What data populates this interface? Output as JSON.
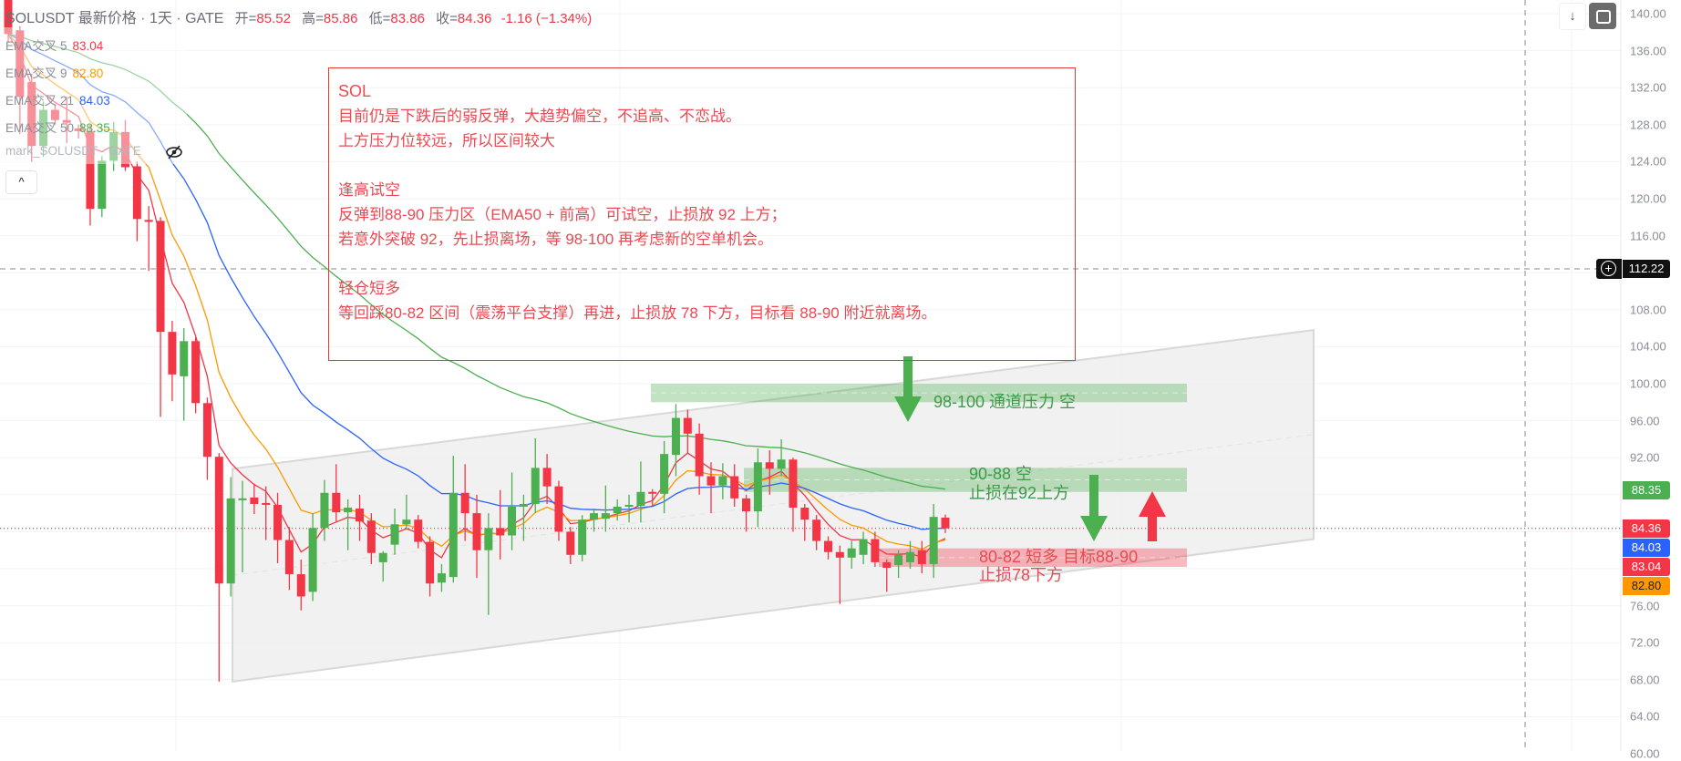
{
  "header": {
    "symbol": "SOLUSDT",
    "title_rest": "最新价格 · 1天 · GATE",
    "open_label": "开=",
    "open": "85.52",
    "high_label": "高=",
    "high": "85.86",
    "low_label": "低=",
    "low": "83.86",
    "close_label": "收=",
    "close": "84.36",
    "change": "-1.16 (−1.34%)"
  },
  "legend": {
    "items": [
      {
        "label": "EMA交叉 5",
        "value": "83.04",
        "color": "#f23645"
      },
      {
        "label": "EMA交叉 9",
        "value": "82.80",
        "color": "#ff9800"
      },
      {
        "label": "EMA交叉 21",
        "value": "84.03",
        "color": "#2962ff"
      },
      {
        "label": "EMA交叉 50",
        "value": "88.35",
        "color": "#4caf50"
      }
    ],
    "mark_label": "mark_SOLUSDT · GATE",
    "collapse_icon": "chevron-up-icon",
    "collapse_glyph": "^"
  },
  "toolbar": {
    "scroll_glyph": "↓",
    "scroll_icon": "arrow-down-icon",
    "fullscreen_icon": "fullscreen-icon"
  },
  "note": {
    "lines": [
      "SOL",
      "目前仍是下跌后的弱反弹，大趋势偏空，不追高、不恋战。",
      "上方压力位较远，所以区间较大",
      "",
      "逢高试空",
      "反弹到88-90 压力区（EMA50 + 前高）可试空，止损放 92 上方；",
      "若意外突破 92，先止损离场，等 98-100 再考虑新的空单机会。",
      "",
      "轻仓短多",
      "等回踩80-82 区间（震荡平台支撑）再进，止损放 78 下方，目标看 88-90 附近就离场。"
    ]
  },
  "zones": [
    {
      "label": "98-100 通道压力 空",
      "price_range": [
        98,
        100
      ],
      "color": "#4caf50"
    },
    {
      "label": "90-88 空",
      "label2": "止损在92上方",
      "price_range": [
        88,
        90
      ],
      "color": "#4caf50"
    },
    {
      "label": "80-82 短多 目标88-90",
      "label2": "止损78下方",
      "price_range": [
        80,
        82
      ],
      "color": "#f23645"
    }
  ],
  "crosshair": {
    "price": "112.22",
    "plus_glyph": "+"
  },
  "price_labels": [
    {
      "value": "88.35",
      "color": "#4caf50"
    },
    {
      "value": "84.36",
      "color": "#f23645"
    },
    {
      "value": "84.03",
      "color": "#2962ff"
    },
    {
      "value": "83.04",
      "color": "#f23645"
    },
    {
      "value": "82.80",
      "color": "#ff9800"
    }
  ],
  "chart_data": {
    "type": "candlestick",
    "timeframe": "1天",
    "ylim": [
      60,
      140
    ],
    "y_ticks": [
      "140.00",
      "136.00",
      "132.00",
      "128.00",
      "124.00",
      "120.00",
      "116.00",
      "112.00",
      "108.00",
      "104.00",
      "100.00",
      "96.00",
      "92.00",
      "88.00",
      "84.00",
      "80.00",
      "76.00",
      "72.00",
      "68.00",
      "64.00",
      "60.00"
    ],
    "grid": true,
    "colors": {
      "up": "#4caf50",
      "down": "#f23645",
      "last_price_line": "#f23645"
    },
    "ohlc_order": [
      "open",
      "high",
      "low",
      "close"
    ],
    "ohlc": [
      [
        141.5,
        141.8,
        137.0,
        137.8
      ],
      [
        138.2,
        138.6,
        127.0,
        131.0
      ],
      [
        132.6,
        133.5,
        124.0,
        125.7
      ],
      [
        125.7,
        130.5,
        124.5,
        129.6
      ],
      [
        129.6,
        130.2,
        128.0,
        128.5
      ],
      [
        128.5,
        131.0,
        126.0,
        128.2
      ],
      [
        127.6,
        128.0,
        126.5,
        127.3
      ],
      [
        127.3,
        128.0,
        117.1,
        118.9
      ],
      [
        118.9,
        124.6,
        118.0,
        124.1
      ],
      [
        124.1,
        128.3,
        123.0,
        127.2
      ],
      [
        127.2,
        128.5,
        123.0,
        123.4
      ],
      [
        123.5,
        124.0,
        115.4,
        117.8
      ],
      [
        117.7,
        119.2,
        112.2,
        117.5
      ],
      [
        117.6,
        118.0,
        96.4,
        105.6
      ],
      [
        105.6,
        106.8,
        98.1,
        101.0
      ],
      [
        100.8,
        106.0,
        96.0,
        104.6
      ],
      [
        104.6,
        105.0,
        96.8,
        97.9
      ],
      [
        97.9,
        98.5,
        89.6,
        92.1
      ],
      [
        92.1,
        92.5,
        67.8,
        78.4
      ],
      [
        78.4,
        89.9,
        77.0,
        87.6
      ],
      [
        87.5,
        89.5,
        79.6,
        87.6
      ],
      [
        87.7,
        89.2,
        85.9,
        87.0
      ],
      [
        87.1,
        88.9,
        83.1,
        86.9
      ],
      [
        86.9,
        88.2,
        80.6,
        83.1
      ],
      [
        83.1,
        84.5,
        77.7,
        79.4
      ],
      [
        79.4,
        81.0,
        75.5,
        77.0
      ],
      [
        77.5,
        86.0,
        76.5,
        84.4
      ],
      [
        84.4,
        89.6,
        83.0,
        88.2
      ],
      [
        88.2,
        91.3,
        85.1,
        86.1
      ],
      [
        86.1,
        87.5,
        82.0,
        86.6
      ],
      [
        86.5,
        88.0,
        83.0,
        85.1
      ],
      [
        85.2,
        86.0,
        80.5,
        81.7
      ],
      [
        80.7,
        81.9,
        78.6,
        81.7
      ],
      [
        82.6,
        86.5,
        81.5,
        84.8
      ],
      [
        84.8,
        88.0,
        84.2,
        85.3
      ],
      [
        85.3,
        85.8,
        82.2,
        82.9
      ],
      [
        82.9,
        83.5,
        77.0,
        78.4
      ],
      [
        78.5,
        80.5,
        77.5,
        79.5
      ],
      [
        79.1,
        92.2,
        78.5,
        88.2
      ],
      [
        88.2,
        91.3,
        83.0,
        86.0
      ],
      [
        86.0,
        88.0,
        79.0,
        82.0
      ],
      [
        82.0,
        86.0,
        75.0,
        84.4
      ],
      [
        84.4,
        88.5,
        81.0,
        83.6
      ],
      [
        83.6,
        90.4,
        82.0,
        86.7
      ],
      [
        86.7,
        88.0,
        83.0,
        87.0
      ],
      [
        87.0,
        94.1,
        86.0,
        90.9
      ],
      [
        90.9,
        92.4,
        87.0,
        88.9
      ],
      [
        88.9,
        89.5,
        83.0,
        84.0
      ],
      [
        84.0,
        84.5,
        80.5,
        81.5
      ],
      [
        81.5,
        85.8,
        80.8,
        85.3
      ],
      [
        85.3,
        86.5,
        84.0,
        86.0
      ],
      [
        85.4,
        89.0,
        84.0,
        86.0
      ],
      [
        86.0,
        87.5,
        85.2,
        86.7
      ],
      [
        86.7,
        88.0,
        85.0,
        86.9
      ],
      [
        86.8,
        91.6,
        85.0,
        88.3
      ],
      [
        88.3,
        88.6,
        86.8,
        88.2
      ],
      [
        88.1,
        93.8,
        86.0,
        92.4
      ],
      [
        92.3,
        97.8,
        90.0,
        96.3
      ],
      [
        96.3,
        97.2,
        92.5,
        94.6
      ],
      [
        94.6,
        95.7,
        88.0,
        90.0
      ],
      [
        90.0,
        91.5,
        86.0,
        89.0
      ],
      [
        89.0,
        91.4,
        87.5,
        90.0
      ],
      [
        90.0,
        91.3,
        86.7,
        87.6
      ],
      [
        87.6,
        88.0,
        84.0,
        86.2
      ],
      [
        86.2,
        93.0,
        84.5,
        91.5
      ],
      [
        91.5,
        92.8,
        88.0,
        90.8
      ],
      [
        90.8,
        94.0,
        90.0,
        91.8
      ],
      [
        91.8,
        92.0,
        84.0,
        86.6
      ],
      [
        86.6,
        87.0,
        83.0,
        85.3
      ],
      [
        85.3,
        85.8,
        82.0,
        83.0
      ],
      [
        83.0,
        83.5,
        81.0,
        81.8
      ],
      [
        81.8,
        82.5,
        76.2,
        81.2
      ],
      [
        81.2,
        83.0,
        80.0,
        82.2
      ],
      [
        81.5,
        84.0,
        80.5,
        83.2
      ],
      [
        83.2,
        84.0,
        80.2,
        80.7
      ],
      [
        80.7,
        81.0,
        77.5,
        80.1
      ],
      [
        80.4,
        82.0,
        79.0,
        81.5
      ],
      [
        80.7,
        83.0,
        80.0,
        81.8
      ],
      [
        82.0,
        83.0,
        79.5,
        80.5
      ],
      [
        80.5,
        87.0,
        79.0,
        85.6
      ],
      [
        85.52,
        85.86,
        83.86,
        84.36
      ]
    ],
    "ema_periods": [
      5,
      9,
      21,
      50
    ],
    "channel": {
      "upper": [
        90.8,
        105.8
      ],
      "lower": [
        67.8,
        83.2
      ]
    },
    "last_price": 84.36,
    "crosshair_price": 112.22
  }
}
